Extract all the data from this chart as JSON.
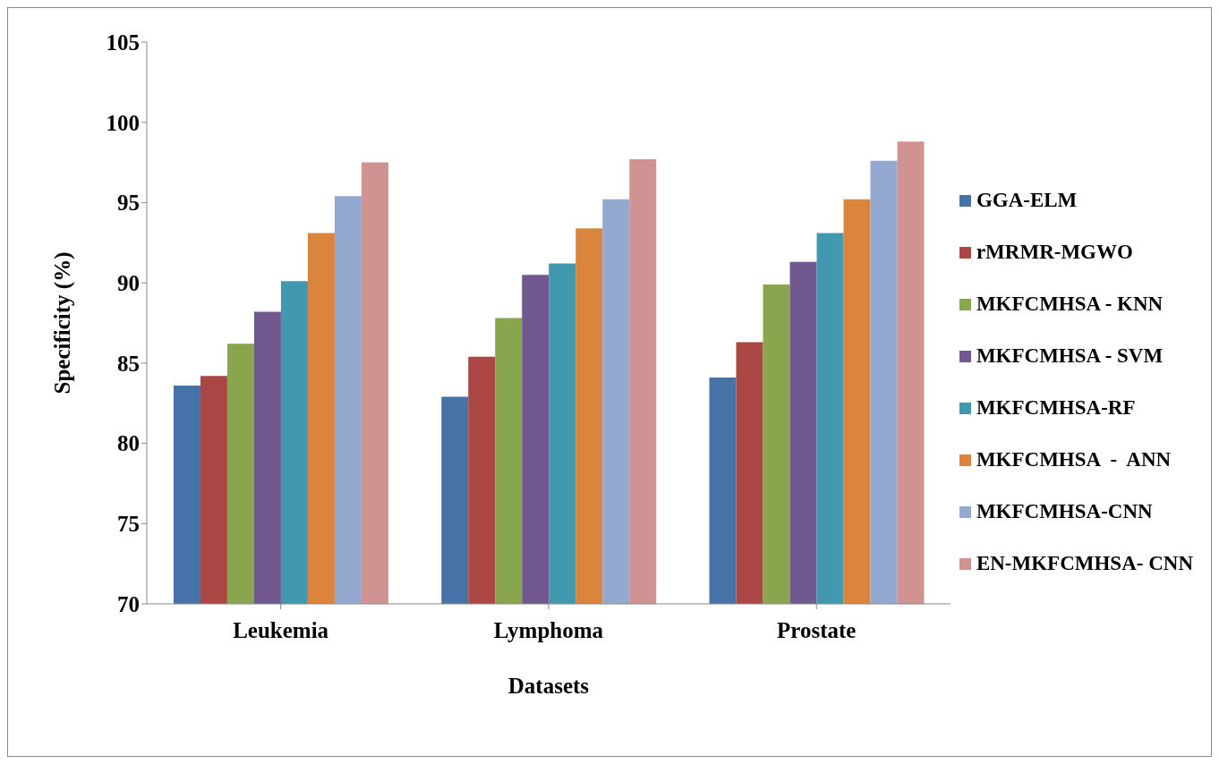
{
  "chart_data": {
    "type": "bar",
    "xlabel": "Datasets",
    "ylabel": "Specificity (%)",
    "categories": [
      "Leukemia",
      "Lymphoma",
      "Prostate"
    ],
    "series": [
      {
        "name": "GGA-ELM",
        "color": "#4572a7",
        "values": [
          83.6,
          82.9,
          84.1
        ]
      },
      {
        "name": "rMRMR-MGWO",
        "color": "#aa4643",
        "values": [
          84.2,
          85.4,
          86.3
        ]
      },
      {
        "name": "MKFCMHSA - KNN",
        "color": "#89a54e",
        "values": [
          86.2,
          87.8,
          89.9
        ]
      },
      {
        "name": "MKFCMHSA - SVM",
        "color": "#71588f",
        "values": [
          88.2,
          90.5,
          91.3
        ]
      },
      {
        "name": "MKFCMHSA-RF",
        "color": "#4198af",
        "values": [
          90.1,
          91.2,
          93.1
        ]
      },
      {
        "name": "MKFCMHSA  -  ANN",
        "color": "#db843d",
        "values": [
          93.1,
          93.4,
          95.2
        ]
      },
      {
        "name": "MKFCMHSA-CNN",
        "color": "#93a9cf",
        "values": [
          95.4,
          95.2,
          97.6
        ]
      },
      {
        "name": "EN-MKFCMHSA- CNN",
        "color": "#d19392",
        "values": [
          97.5,
          97.7,
          98.8
        ]
      }
    ],
    "ylim": [
      70,
      105
    ],
    "yticks": [
      70,
      75,
      80,
      85,
      90,
      95,
      100,
      105
    ],
    "grid": false,
    "legend": "right"
  }
}
